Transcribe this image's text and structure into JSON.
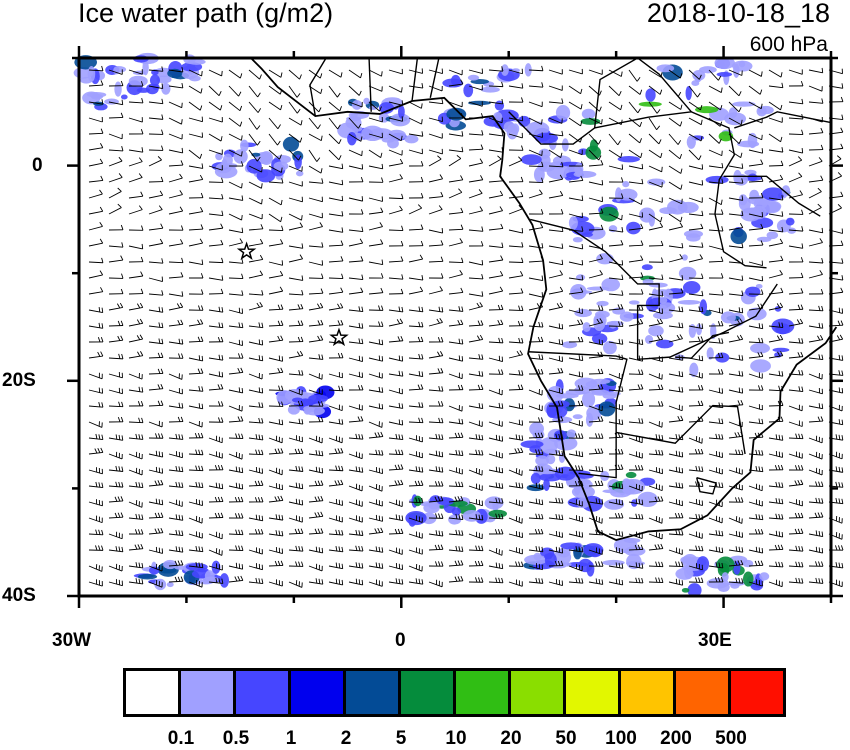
{
  "header": {
    "title": "Ice water path (g/m2)",
    "date": "2018-10-18_18",
    "level": "600 hPa"
  },
  "axes": {
    "x_labels": [
      "30W",
      "0",
      "30E"
    ],
    "y_labels": [
      "0",
      "20S",
      "40S"
    ],
    "lon_range": [
      -30,
      40
    ],
    "lat_range": [
      -40,
      10
    ]
  },
  "markers": [
    {
      "icon": "star-icon",
      "lon": -14.4,
      "lat": -8
    },
    {
      "icon": "star-icon",
      "lon": -5.8,
      "lat": -16
    }
  ],
  "colorbar": {
    "colors": [
      "#ffffff",
      "#a0a0ff",
      "#4646ff",
      "#0000ee",
      "#034b96",
      "#058c3c",
      "#30be14",
      "#8ade00",
      "#e2f700",
      "#ffc400",
      "#ff6400",
      "#ff0f00"
    ],
    "labels": [
      "0.1",
      "0.5",
      "1",
      "2",
      "5",
      "10",
      "20",
      "50",
      "100",
      "200",
      "500"
    ]
  }
}
